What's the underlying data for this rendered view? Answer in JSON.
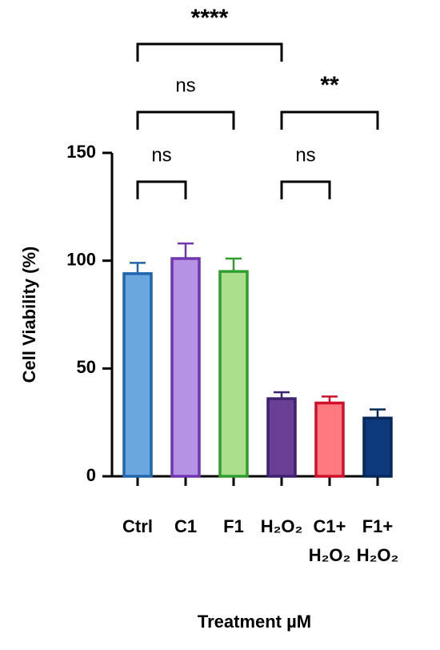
{
  "chart_data": {
    "type": "bar",
    "y_label": "Cell Viability (%)",
    "x_label": "Treatment µM",
    "categories": [
      "Ctrl",
      "C1",
      "F1",
      "H₂O₂",
      "C1+\nH₂O₂",
      "F1+\nH₂O₂"
    ],
    "values": [
      94,
      101,
      95,
      36,
      34,
      27
    ],
    "errors": [
      5,
      7,
      6,
      3,
      3,
      4
    ],
    "colors": [
      "#6aa6e0",
      "#b592e3",
      "#acdf8c",
      "#6a3f96",
      "#ff7a80",
      "#0c3a7c"
    ],
    "edge_colors": [
      "#1f66ad",
      "#7035b0",
      "#2f9e2f",
      "#3e2270",
      "#d0102a",
      "#08285a"
    ],
    "ylim": [
      0,
      150
    ],
    "yticks": [
      0,
      50,
      100,
      150
    ],
    "annotations": [
      "****",
      "ns",
      "**",
      "ns",
      "ns"
    ]
  }
}
